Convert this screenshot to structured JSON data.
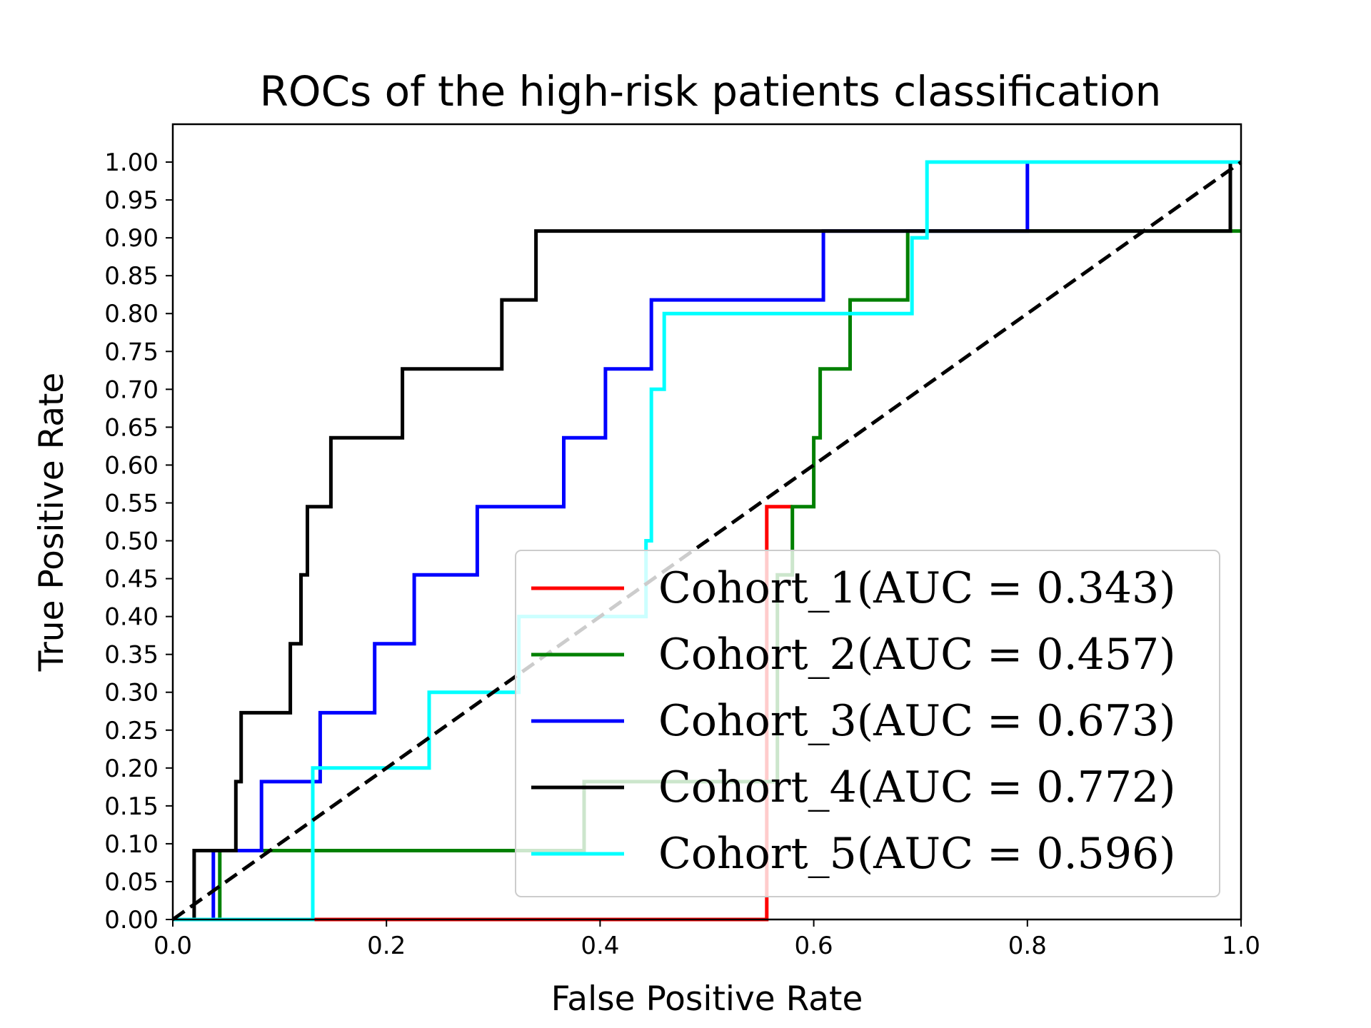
{
  "chart_data": {
    "type": "line",
    "title": "ROCs of the high-risk patients classification",
    "xlabel": "False Positive Rate",
    "ylabel": "True Positive Rate",
    "xlim": [
      0.0,
      1.0
    ],
    "ylim": [
      0.0,
      1.05
    ],
    "xticks": [
      "0.0",
      "0.2",
      "0.4",
      "0.6",
      "0.8",
      "1.0"
    ],
    "yticks": [
      "0.00",
      "0.05",
      "0.10",
      "0.15",
      "0.20",
      "0.25",
      "0.30",
      "0.35",
      "0.40",
      "0.45",
      "0.50",
      "0.55",
      "0.60",
      "0.65",
      "0.70",
      "0.75",
      "0.80",
      "0.85",
      "0.90",
      "0.95",
      "1.00"
    ],
    "grid": false,
    "legend_position": "lower-right",
    "series": [
      {
        "name": "Cohort_1(AUC = 0.343)",
        "color": "#ff0000",
        "x": [
          0.0,
          0.545,
          0.545,
          0.556,
          0.556,
          0.565,
          0.565,
          0.578,
          0.578,
          0.58,
          0.58,
          0.58,
          0.58,
          0.58,
          0.58,
          0.58,
          0.58,
          0.58,
          0.58,
          0.58,
          0.58
        ],
        "y": [
          0.0,
          0.0,
          0.0,
          0.0,
          0.545,
          0.545,
          0.545,
          0.545,
          0.545,
          0.545,
          0.545,
          0.545,
          0.545,
          0.545,
          0.545,
          0.545,
          0.545,
          0.545,
          0.545,
          0.545,
          0.545
        ]
      },
      {
        "name": "Cohort_2(AUC = 0.457)",
        "color": "#008000",
        "x": [
          0.0,
          0.044,
          0.044,
          0.385,
          0.385,
          0.566,
          0.566,
          0.58,
          0.58,
          0.6,
          0.6,
          0.606,
          0.606,
          0.634,
          0.634,
          0.688,
          0.688,
          1.0
        ],
        "y": [
          0.0,
          0.0,
          0.091,
          0.091,
          0.182,
          0.182,
          0.455,
          0.455,
          0.545,
          0.545,
          0.636,
          0.636,
          0.727,
          0.727,
          0.818,
          0.818,
          0.909,
          0.909
        ]
      },
      {
        "name": "Cohort_3(AUC = 0.673)",
        "color": "#0000ff",
        "x": [
          0.0,
          0.038,
          0.038,
          0.083,
          0.083,
          0.138,
          0.138,
          0.189,
          0.189,
          0.226,
          0.226,
          0.285,
          0.285,
          0.366,
          0.366,
          0.405,
          0.405,
          0.448,
          0.448,
          0.609,
          0.609,
          0.8,
          0.8,
          1.0
        ],
        "y": [
          0.0,
          0.0,
          0.091,
          0.091,
          0.182,
          0.182,
          0.273,
          0.273,
          0.364,
          0.364,
          0.455,
          0.455,
          0.545,
          0.545,
          0.636,
          0.636,
          0.727,
          0.727,
          0.818,
          0.818,
          0.909,
          0.909,
          1.0,
          1.0
        ]
      },
      {
        "name": "Cohort_4(AUC = 0.772)",
        "color": "#000000",
        "x": [
          0.0,
          0.02,
          0.02,
          0.059,
          0.059,
          0.064,
          0.064,
          0.11,
          0.11,
          0.12,
          0.12,
          0.126,
          0.126,
          0.148,
          0.148,
          0.215,
          0.215,
          0.308,
          0.308,
          0.34,
          0.34,
          0.99,
          0.99,
          1.0
        ],
        "y": [
          0.0,
          0.0,
          0.091,
          0.091,
          0.182,
          0.182,
          0.273,
          0.273,
          0.364,
          0.364,
          0.455,
          0.455,
          0.545,
          0.545,
          0.636,
          0.636,
          0.727,
          0.727,
          0.818,
          0.818,
          0.909,
          0.909,
          1.0,
          1.0
        ]
      },
      {
        "name": "Cohort_5(AUC = 0.596)",
        "color": "#00ffff",
        "x": [
          0.0,
          0.131,
          0.131,
          0.24,
          0.24,
          0.324,
          0.324,
          0.443,
          0.443,
          0.448,
          0.448,
          0.46,
          0.46,
          0.692,
          0.692,
          0.706,
          0.706,
          1.0
        ],
        "y": [
          0.0,
          0.0,
          0.2,
          0.2,
          0.3,
          0.3,
          0.4,
          0.4,
          0.5,
          0.5,
          0.7,
          0.7,
          0.8,
          0.8,
          0.9,
          0.9,
          1.0,
          1.0
        ]
      },
      {
        "name": "",
        "color": "#000000",
        "dashed": true,
        "x": [
          0.0,
          1.0
        ],
        "y": [
          0.0,
          1.0
        ]
      }
    ]
  }
}
